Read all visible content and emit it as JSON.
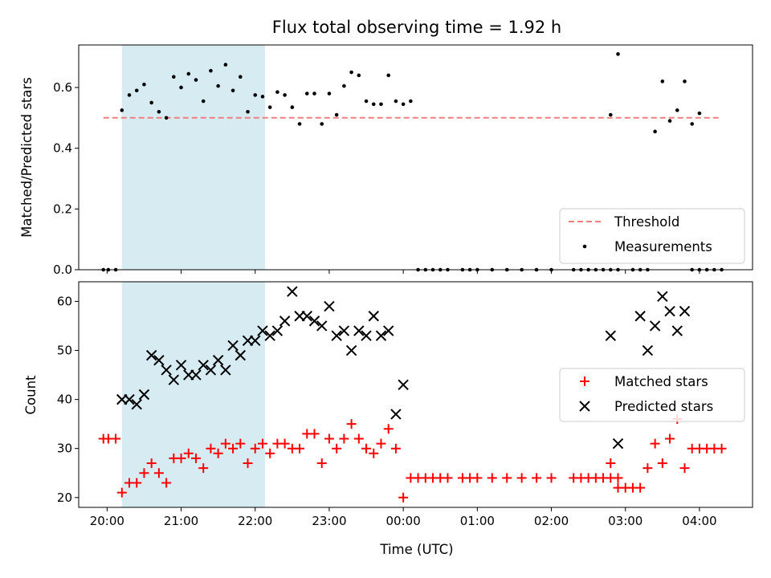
{
  "chart_data": [
    {
      "type": "scatter",
      "title": "Flux total observing time = 1.92 h",
      "xlabel": "",
      "ylabel": "Matched/Predicted stars",
      "xlim": [
        "19:37",
        "04:43"
      ],
      "ylim": [
        0,
        0.74
      ],
      "yticks": [
        0.0,
        0.2,
        0.4,
        0.6
      ],
      "ytick_labels": [
        "0.0",
        "0.2",
        "0.4",
        "0.6"
      ],
      "shaded_interval": {
        "start": "20:12",
        "end": "22:08",
        "color": "#add8e6"
      },
      "threshold": {
        "name": "Threshold",
        "value": 0.5,
        "start": "19:57",
        "end": "04:18",
        "color": "#f08080"
      },
      "legend": {
        "location": "lower-right",
        "entries": [
          "Threshold",
          "Measurements"
        ]
      },
      "series": [
        {
          "name": "Measurements",
          "marker": "dot",
          "color": "#000000",
          "points": [
            [
              "19:57",
              0
            ],
            [
              "20:01",
              0
            ],
            [
              "20:07",
              0
            ],
            [
              "20:12",
              0.525
            ],
            [
              "20:18",
              0.575
            ],
            [
              "20:24",
              0.59
            ],
            [
              "20:30",
              0.61
            ],
            [
              "20:36",
              0.55
            ],
            [
              "20:42",
              0.52
            ],
            [
              "20:48",
              0.5
            ],
            [
              "20:54",
              0.635
            ],
            [
              "21:00",
              0.6
            ],
            [
              "21:06",
              0.645
            ],
            [
              "21:12",
              0.625
            ],
            [
              "21:18",
              0.555
            ],
            [
              "21:24",
              0.655
            ],
            [
              "21:30",
              0.605
            ],
            [
              "21:36",
              0.675
            ],
            [
              "21:42",
              0.59
            ],
            [
              "21:48",
              0.635
            ],
            [
              "21:54",
              0.52
            ],
            [
              "22:00",
              0.575
            ],
            [
              "22:06",
              0.57
            ],
            [
              "22:12",
              0.535
            ],
            [
              "22:18",
              0.585
            ],
            [
              "22:24",
              0.575
            ],
            [
              "22:30",
              0.535
            ],
            [
              "22:36",
              0.48
            ],
            [
              "22:42",
              0.58
            ],
            [
              "22:48",
              0.58
            ],
            [
              "22:54",
              0.48
            ],
            [
              "23:00",
              0.58
            ],
            [
              "23:06",
              0.51
            ],
            [
              "23:12",
              0.605
            ],
            [
              "23:18",
              0.65
            ],
            [
              "23:24",
              0.64
            ],
            [
              "23:30",
              0.555
            ],
            [
              "23:36",
              0.545
            ],
            [
              "23:42",
              0.545
            ],
            [
              "23:48",
              0.64
            ],
            [
              "23:54",
              0.555
            ],
            [
              "00:00",
              0.545
            ],
            [
              "00:06",
              0.555
            ],
            [
              "00:12",
              0
            ],
            [
              "00:18",
              0
            ],
            [
              "00:24",
              0
            ],
            [
              "00:30",
              0
            ],
            [
              "00:36",
              0
            ],
            [
              "00:48",
              0
            ],
            [
              "00:54",
              0
            ],
            [
              "01:00",
              0
            ],
            [
              "01:12",
              0
            ],
            [
              "01:24",
              0
            ],
            [
              "01:36",
              0
            ],
            [
              "01:48",
              0
            ],
            [
              "02:00",
              0
            ],
            [
              "02:18",
              0
            ],
            [
              "02:24",
              0
            ],
            [
              "02:30",
              0
            ],
            [
              "02:36",
              0
            ],
            [
              "02:42",
              0
            ],
            [
              "02:48",
              0
            ],
            [
              "02:54",
              0
            ],
            [
              "02:48",
              0.51
            ],
            [
              "02:54",
              0.71
            ],
            [
              "03:06",
              0
            ],
            [
              "03:12",
              0
            ],
            [
              "03:18",
              0
            ],
            [
              "03:24",
              0.455
            ],
            [
              "03:30",
              0.62
            ],
            [
              "03:36",
              0.49
            ],
            [
              "03:42",
              0.525
            ],
            [
              "03:48",
              0.62
            ],
            [
              "03:54",
              0.48
            ],
            [
              "04:00",
              0.515
            ],
            [
              "03:54",
              0
            ],
            [
              "04:00",
              0
            ],
            [
              "04:06",
              0
            ],
            [
              "04:12",
              0
            ],
            [
              "04:18",
              0
            ]
          ]
        }
      ]
    },
    {
      "type": "scatter",
      "title": "",
      "xlabel": "Time (UTC)",
      "ylabel": "Count",
      "xlim": [
        "19:37",
        "04:43"
      ],
      "ylim": [
        18,
        64
      ],
      "yticks": [
        20,
        30,
        40,
        50,
        60
      ],
      "ytick_labels": [
        "20",
        "30",
        "40",
        "50",
        "60"
      ],
      "xticks": [
        "20:00",
        "21:00",
        "22:00",
        "23:00",
        "00:00",
        "01:00",
        "02:00",
        "03:00",
        "04:00"
      ],
      "shaded_interval": {
        "start": "20:12",
        "end": "22:08",
        "color": "#add8e6"
      },
      "legend": {
        "location": "center-right",
        "entries": [
          "Matched stars",
          "Predicted stars"
        ]
      },
      "series": [
        {
          "name": "Matched stars",
          "marker": "plus",
          "color": "#ff0000",
          "points": [
            [
              "19:57",
              32
            ],
            [
              "20:01",
              32
            ],
            [
              "20:07",
              32
            ],
            [
              "20:12",
              21
            ],
            [
              "20:18",
              23
            ],
            [
              "20:24",
              23
            ],
            [
              "20:30",
              25
            ],
            [
              "20:36",
              27
            ],
            [
              "20:42",
              25
            ],
            [
              "20:48",
              23
            ],
            [
              "20:54",
              28
            ],
            [
              "21:00",
              28
            ],
            [
              "21:06",
              29
            ],
            [
              "21:12",
              28
            ],
            [
              "21:18",
              26
            ],
            [
              "21:24",
              30
            ],
            [
              "21:30",
              29
            ],
            [
              "21:36",
              31
            ],
            [
              "21:42",
              30
            ],
            [
              "21:48",
              31
            ],
            [
              "21:54",
              27
            ],
            [
              "22:00",
              30
            ],
            [
              "22:06",
              31
            ],
            [
              "22:12",
              29
            ],
            [
              "22:18",
              31
            ],
            [
              "22:24",
              31
            ],
            [
              "22:30",
              30
            ],
            [
              "22:36",
              30
            ],
            [
              "22:42",
              33
            ],
            [
              "22:48",
              33
            ],
            [
              "22:54",
              27
            ],
            [
              "23:00",
              32
            ],
            [
              "23:06",
              30
            ],
            [
              "23:12",
              32
            ],
            [
              "23:18",
              35
            ],
            [
              "23:24",
              32
            ],
            [
              "23:30",
              30
            ],
            [
              "23:36",
              29
            ],
            [
              "23:42",
              31
            ],
            [
              "23:48",
              34
            ],
            [
              "23:54",
              30
            ],
            [
              "00:00",
              20
            ],
            [
              "00:06",
              24
            ],
            [
              "00:12",
              24
            ],
            [
              "00:18",
              24
            ],
            [
              "00:24",
              24
            ],
            [
              "00:30",
              24
            ],
            [
              "00:36",
              24
            ],
            [
              "00:48",
              24
            ],
            [
              "00:54",
              24
            ],
            [
              "01:00",
              24
            ],
            [
              "01:12",
              24
            ],
            [
              "01:24",
              24
            ],
            [
              "01:36",
              24
            ],
            [
              "01:48",
              24
            ],
            [
              "02:00",
              24
            ],
            [
              "02:18",
              24
            ],
            [
              "02:24",
              24
            ],
            [
              "02:30",
              24
            ],
            [
              "02:36",
              24
            ],
            [
              "02:42",
              24
            ],
            [
              "02:48",
              24
            ],
            [
              "02:54",
              24
            ],
            [
              "02:48",
              27
            ],
            [
              "02:54",
              22
            ],
            [
              "03:00",
              22
            ],
            [
              "03:06",
              22
            ],
            [
              "03:12",
              22
            ],
            [
              "03:18",
              26
            ],
            [
              "03:24",
              31
            ],
            [
              "03:30",
              27
            ],
            [
              "03:36",
              32
            ],
            [
              "03:42",
              36
            ],
            [
              "03:48",
              26
            ],
            [
              "03:54",
              30
            ],
            [
              "04:00",
              30
            ],
            [
              "04:06",
              30
            ],
            [
              "04:12",
              30
            ],
            [
              "04:18",
              30
            ]
          ]
        },
        {
          "name": "Predicted stars",
          "marker": "x",
          "color": "#000000",
          "points": [
            [
              "20:12",
              40
            ],
            [
              "20:18",
              40
            ],
            [
              "20:24",
              39
            ],
            [
              "20:30",
              41
            ],
            [
              "20:36",
              49
            ],
            [
              "20:42",
              48
            ],
            [
              "20:48",
              46
            ],
            [
              "20:54",
              44
            ],
            [
              "21:00",
              47
            ],
            [
              "21:06",
              45
            ],
            [
              "21:12",
              45
            ],
            [
              "21:18",
              47
            ],
            [
              "21:24",
              46
            ],
            [
              "21:30",
              48
            ],
            [
              "21:36",
              46
            ],
            [
              "21:42",
              51
            ],
            [
              "21:48",
              49
            ],
            [
              "21:54",
              52
            ],
            [
              "22:00",
              52
            ],
            [
              "22:06",
              54
            ],
            [
              "22:12",
              53
            ],
            [
              "22:18",
              54
            ],
            [
              "22:24",
              56
            ],
            [
              "22:30",
              62
            ],
            [
              "22:36",
              57
            ],
            [
              "22:42",
              57
            ],
            [
              "22:48",
              56
            ],
            [
              "22:54",
              55
            ],
            [
              "23:00",
              59
            ],
            [
              "23:06",
              53
            ],
            [
              "23:12",
              54
            ],
            [
              "23:18",
              50
            ],
            [
              "23:24",
              54
            ],
            [
              "23:30",
              53
            ],
            [
              "23:36",
              57
            ],
            [
              "23:42",
              53
            ],
            [
              "23:48",
              54
            ],
            [
              "23:54",
              37
            ],
            [
              "00:00",
              43
            ],
            [
              "02:48",
              53
            ],
            [
              "02:54",
              31
            ],
            [
              "03:12",
              57
            ],
            [
              "03:18",
              50
            ],
            [
              "03:24",
              55
            ],
            [
              "03:30",
              61
            ],
            [
              "03:36",
              58
            ],
            [
              "03:42",
              54
            ],
            [
              "03:48",
              58
            ]
          ]
        }
      ]
    }
  ]
}
